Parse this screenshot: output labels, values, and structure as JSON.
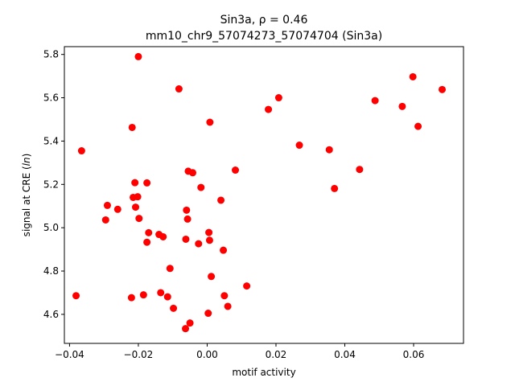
{
  "chart_data": {
    "type": "scatter",
    "title_line1": "Sin3a, ρ = 0.46",
    "title_line2": "mm10_chr9_57074273_57074704 (Sin3a)",
    "xlabel": "motif activity",
    "ylabel_prefix": "signal at CRE (",
    "ylabel_italic": "ln",
    "ylabel_suffix": ")",
    "xlim": [
      -0.0415,
      0.0745
    ],
    "ylim": [
      4.466,
      5.836
    ],
    "x_ticks": [
      -0.04,
      -0.02,
      0.0,
      0.02,
      0.04,
      0.06
    ],
    "x_tick_labels": [
      "−0.04",
      "−0.02",
      "0.00",
      "0.02",
      "0.04",
      "0.06"
    ],
    "y_ticks": [
      4.6,
      4.8,
      5.0,
      5.2,
      5.4,
      5.6,
      5.8
    ],
    "y_tick_labels": [
      "4.6",
      "4.8",
      "5.0",
      "5.2",
      "5.4",
      "5.6",
      "5.8"
    ],
    "marker_color": "#ff0000",
    "grid": false,
    "points": [
      {
        "x": -0.0381,
        "y": 4.686
      },
      {
        "x": -0.0365,
        "y": 5.355
      },
      {
        "x": -0.0295,
        "y": 5.036
      },
      {
        "x": -0.029,
        "y": 5.103
      },
      {
        "x": -0.026,
        "y": 5.085
      },
      {
        "x": -0.022,
        "y": 4.677
      },
      {
        "x": -0.0218,
        "y": 5.463
      },
      {
        "x": -0.0215,
        "y": 5.14
      },
      {
        "x": -0.021,
        "y": 5.208
      },
      {
        "x": -0.0208,
        "y": 5.095
      },
      {
        "x": -0.0202,
        "y": 5.143
      },
      {
        "x": -0.02,
        "y": 5.79
      },
      {
        "x": -0.0198,
        "y": 5.043
      },
      {
        "x": -0.0185,
        "y": 4.69
      },
      {
        "x": -0.0175,
        "y": 5.207
      },
      {
        "x": -0.0175,
        "y": 4.933
      },
      {
        "x": -0.017,
        "y": 4.977
      },
      {
        "x": -0.014,
        "y": 4.969
      },
      {
        "x": -0.0135,
        "y": 4.7
      },
      {
        "x": -0.0128,
        "y": 4.958
      },
      {
        "x": -0.0115,
        "y": 4.681
      },
      {
        "x": -0.0108,
        "y": 4.812
      },
      {
        "x": -0.0098,
        "y": 4.628
      },
      {
        "x": -0.0082,
        "y": 5.641
      },
      {
        "x": -0.0063,
        "y": 4.534
      },
      {
        "x": -0.0062,
        "y": 4.947
      },
      {
        "x": -0.006,
        "y": 5.081
      },
      {
        "x": -0.0057,
        "y": 5.04
      },
      {
        "x": -0.0055,
        "y": 5.261
      },
      {
        "x": -0.005,
        "y": 4.56
      },
      {
        "x": -0.0042,
        "y": 5.254
      },
      {
        "x": -0.0025,
        "y": 4.926
      },
      {
        "x": -0.0018,
        "y": 5.186
      },
      {
        "x": 0.0003,
        "y": 4.605
      },
      {
        "x": 0.0005,
        "y": 4.978
      },
      {
        "x": 0.0007,
        "y": 4.942
      },
      {
        "x": 0.0008,
        "y": 5.487
      },
      {
        "x": 0.0012,
        "y": 4.775
      },
      {
        "x": 0.004,
        "y": 5.127
      },
      {
        "x": 0.0047,
        "y": 4.896
      },
      {
        "x": 0.005,
        "y": 4.686
      },
      {
        "x": 0.006,
        "y": 4.637
      },
      {
        "x": 0.0082,
        "y": 5.266
      },
      {
        "x": 0.0115,
        "y": 4.731
      },
      {
        "x": 0.0178,
        "y": 5.546
      },
      {
        "x": 0.0208,
        "y": 5.6
      },
      {
        "x": 0.0268,
        "y": 5.381
      },
      {
        "x": 0.0355,
        "y": 5.36
      },
      {
        "x": 0.037,
        "y": 5.181
      },
      {
        "x": 0.0443,
        "y": 5.269
      },
      {
        "x": 0.0488,
        "y": 5.587
      },
      {
        "x": 0.0567,
        "y": 5.56
      },
      {
        "x": 0.0598,
        "y": 5.697
      },
      {
        "x": 0.0613,
        "y": 5.468
      },
      {
        "x": 0.0683,
        "y": 5.638
      }
    ]
  }
}
